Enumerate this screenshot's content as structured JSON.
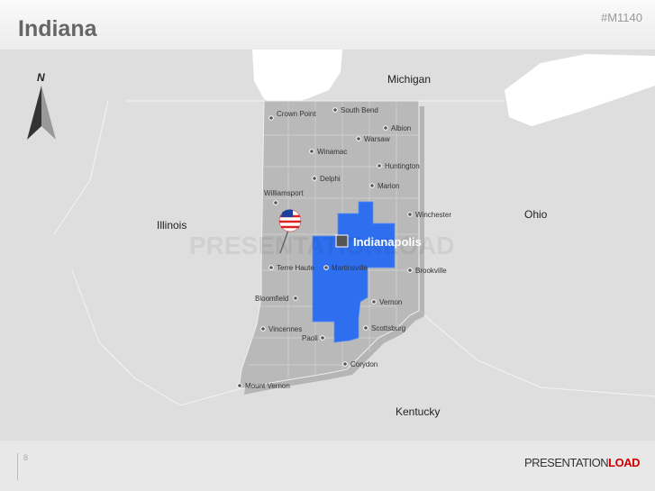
{
  "header": {
    "title": "Indiana",
    "code": "#M1140"
  },
  "map": {
    "compass": "N",
    "regions": [
      "Michigan",
      "Illinois",
      "Ohio",
      "Kentucky"
    ],
    "capital": "Indianapolis",
    "highlight_color": "#2e6ff0",
    "cities": [
      "Crown Point",
      "South Bend",
      "Albion",
      "Warsaw",
      "Winamac",
      "Huntington",
      "Delphi",
      "Marion",
      "Williamsport",
      "Winchester",
      "Martinsville",
      "Terre Haute",
      "Brookville",
      "Bloomfield",
      "Vernon",
      "Vincennes",
      "Scottsburg",
      "Paoli",
      "Corydon",
      "Mount Vernon"
    ],
    "watermark": "PRESENTATIONLOAD"
  },
  "footer": {
    "page": "8",
    "brand_a": "PRESENTATION",
    "brand_b": "LOAD"
  }
}
